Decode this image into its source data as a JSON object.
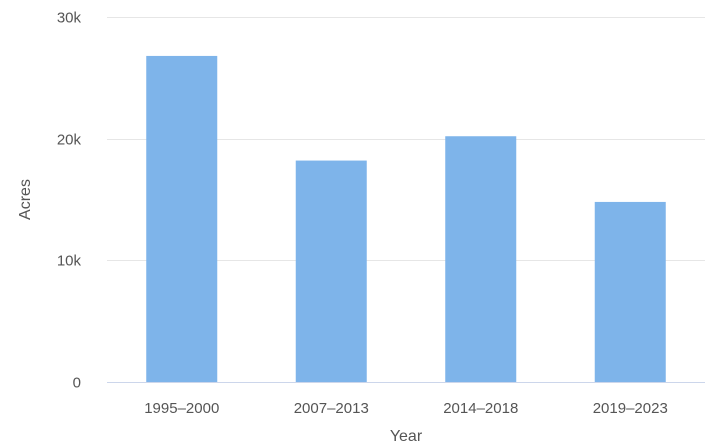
{
  "chart_data": {
    "type": "bar",
    "title": "",
    "xlabel": "Year",
    "ylabel": "Acres",
    "categories": [
      "1995–2000",
      "2007–2013",
      "2014–2018",
      "2019–2023"
    ],
    "values": [
      26800,
      18200,
      20200,
      14800
    ],
    "ylim": [
      0,
      30000
    ],
    "yticks": [
      0,
      10000,
      20000,
      30000
    ],
    "ytick_labels": [
      "0",
      "10k",
      "20k",
      "30k"
    ],
    "grid": true,
    "legend": "none",
    "colors": {
      "bar": "#7eb4ea",
      "grid": "#e6e6e6",
      "axis_line": "#ccd6eb",
      "text": "#555555"
    }
  }
}
